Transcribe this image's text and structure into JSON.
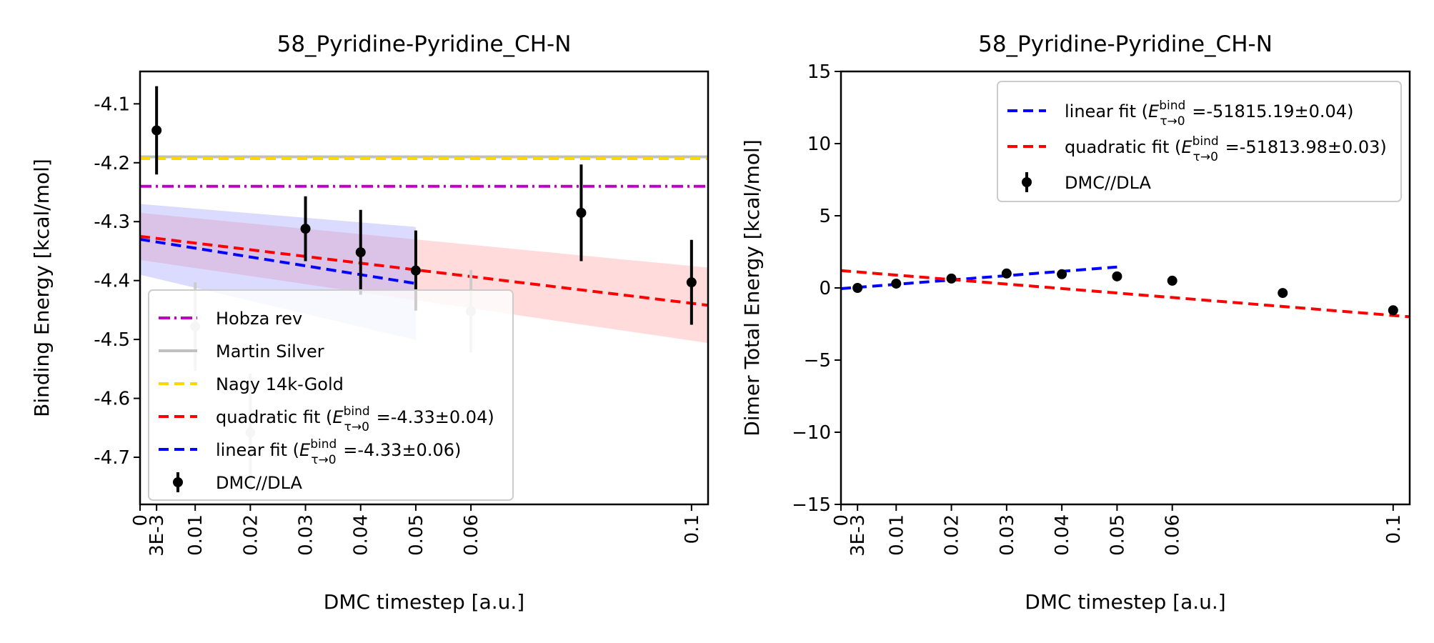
{
  "chart_data": [
    {
      "type": "scatter",
      "title": "58_Pyridine-Pyridine_CH-N",
      "xlabel": "DMC timestep [a.u.]",
      "ylabel": "Binding Energy [kcal/mol]",
      "xlim": [
        0,
        0.103
      ],
      "ylim": [
        -4.78,
        -4.045
      ],
      "x_ticks": [
        {
          "value": 0,
          "label": "0"
        },
        {
          "value": 0.003,
          "label": "3E-3"
        },
        {
          "value": 0.01,
          "label": "0.01"
        },
        {
          "value": 0.02,
          "label": "0.02"
        },
        {
          "value": 0.03,
          "label": "0.03"
        },
        {
          "value": 0.04,
          "label": "0.04"
        },
        {
          "value": 0.05,
          "label": "0.05"
        },
        {
          "value": 0.06,
          "label": "0.06"
        },
        {
          "value": 0.1,
          "label": "0.1"
        }
      ],
      "y_ticks": [
        {
          "value": -4.1,
          "label": "-4.1"
        },
        {
          "value": -4.2,
          "label": "-4.2"
        },
        {
          "value": -4.3,
          "label": "-4.3"
        },
        {
          "value": -4.4,
          "label": "-4.4"
        },
        {
          "value": -4.5,
          "label": "-4.5"
        },
        {
          "value": -4.6,
          "label": "-4.6"
        },
        {
          "value": -4.7,
          "label": "-4.7"
        }
      ],
      "grid": false,
      "legend_position": "lower-left",
      "reference_lines": [
        {
          "name": "Hobza rev",
          "y": -4.24,
          "color": "#c000c0",
          "style": "dashdot"
        },
        {
          "name": "Martin Silver",
          "y": -4.19,
          "color": "#c0c0c0",
          "style": "solid"
        },
        {
          "name": "Nagy 14k-Gold",
          "y": -4.193,
          "color": "#ffd700",
          "style": "dashed"
        }
      ],
      "fits": [
        {
          "name": "quadratic fit",
          "legend_value": "=-4.33±0.04",
          "color": "#ff0000",
          "x": [
            0,
            0.103
          ],
          "y": [
            -4.325,
            -4.442
          ],
          "band": 0.04,
          "band_color": "#ff9999"
        },
        {
          "name": "linear fit",
          "legend_value": "=-4.33±0.06",
          "color": "#0000ff",
          "x": [
            0,
            0.05
          ],
          "y": [
            -4.33,
            -4.405
          ],
          "band": 0.06,
          "band_color": "#9999ff"
        }
      ],
      "series": [
        {
          "name": "DMC//DLA",
          "color": "#000000",
          "x": [
            0.003,
            0.03,
            0.04,
            0.05,
            0.08,
            0.1
          ],
          "y": [
            -4.145,
            -4.312,
            -4.352,
            -4.383,
            -4.285,
            -4.403
          ],
          "err": [
            0.075,
            0.055,
            0.072,
            0.068,
            0.082,
            0.072
          ]
        },
        {
          "color": "#cccccc",
          "x": [
            0.01,
            0.02,
            0.06
          ],
          "y": [
            -4.478,
            -4.658,
            -4.452
          ],
          "err": [
            0.075,
            0.1,
            0.07
          ]
        }
      ],
      "legend_entries": [
        {
          "label": "Hobza rev",
          "color": "#c000c0",
          "style": "dashdot"
        },
        {
          "label": "Martin Silver",
          "color": "#c0c0c0",
          "style": "solid"
        },
        {
          "label": "Nagy 14k-Gold",
          "color": "#ffd700",
          "style": "dashed"
        },
        {
          "label": "quadratic fit (",
          "math": "E",
          "sup": "bind",
          "sub": "τ→0",
          "value": " =-4.33±0.04)",
          "color": "#ff0000",
          "style": "dashed"
        },
        {
          "label": "linear fit (",
          "math": "E",
          "sup": "bind",
          "sub": "τ→0",
          "value": " =-4.33±0.06)",
          "color": "#0000ff",
          "style": "dashed"
        },
        {
          "label": "DMC//DLA",
          "color": "#000000",
          "style": "errorbar"
        }
      ]
    },
    {
      "type": "scatter",
      "title": "58_Pyridine-Pyridine_CH-N",
      "xlabel": "DMC timestep [a.u.]",
      "ylabel": "Dimer Total Energy [kcal/mol]",
      "xlim": [
        0,
        0.103
      ],
      "ylim": [
        -15,
        15
      ],
      "x_ticks": [
        {
          "value": 0,
          "label": "0"
        },
        {
          "value": 0.003,
          "label": "3E-3"
        },
        {
          "value": 0.01,
          "label": "0.01"
        },
        {
          "value": 0.02,
          "label": "0.02"
        },
        {
          "value": 0.03,
          "label": "0.03"
        },
        {
          "value": 0.04,
          "label": "0.04"
        },
        {
          "value": 0.05,
          "label": "0.05"
        },
        {
          "value": 0.06,
          "label": "0.06"
        },
        {
          "value": 0.1,
          "label": "0.1"
        }
      ],
      "y_ticks": [
        {
          "value": -15,
          "label": "−15"
        },
        {
          "value": -10,
          "label": "−10"
        },
        {
          "value": -5,
          "label": "−5"
        },
        {
          "value": 0,
          "label": "0"
        },
        {
          "value": 5,
          "label": "5"
        },
        {
          "value": 10,
          "label": "10"
        },
        {
          "value": 15,
          "label": "15"
        }
      ],
      "grid": false,
      "legend_position": "upper-right",
      "fits": [
        {
          "name": "linear fit",
          "legend_value": "=-51815.19±0.04",
          "color": "#0000ff",
          "x": [
            0,
            0.05
          ],
          "y": [
            -0.05,
            1.45
          ],
          "band": 0,
          "band_color": "#9999ff"
        },
        {
          "name": "quadratic fit",
          "legend_value": "=-51813.98±0.03",
          "color": "#ff0000",
          "x": [
            0,
            0.103
          ],
          "y": [
            1.2,
            -2.0
          ],
          "band": 0,
          "band_color": "#ff9999"
        }
      ],
      "series": [
        {
          "name": "DMC//DLA",
          "color": "#000000",
          "x": [
            0.003,
            0.01,
            0.02,
            0.03,
            0.04,
            0.05,
            0.06,
            0.08,
            0.1
          ],
          "y": [
            0.0,
            0.3,
            0.65,
            1.0,
            0.95,
            0.8,
            0.5,
            -0.35,
            -1.55
          ],
          "err": [
            0.05,
            0.05,
            0.05,
            0.05,
            0.05,
            0.05,
            0.05,
            0.05,
            0.05
          ]
        }
      ],
      "legend_entries": [
        {
          "label": "linear fit (",
          "math": "E",
          "sup": "bind",
          "sub": "τ→0",
          "value": " =-51815.19±0.04)",
          "color": "#0000ff",
          "style": "dashed"
        },
        {
          "label": "quadratic fit (",
          "math": "E",
          "sup": "bind",
          "sub": "τ→0",
          "value": " =-51813.98±0.03)",
          "color": "#ff0000",
          "style": "dashed"
        },
        {
          "label": "DMC//DLA",
          "color": "#000000",
          "style": "errorbar"
        }
      ]
    }
  ]
}
